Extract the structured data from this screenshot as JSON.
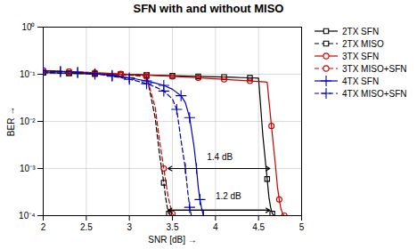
{
  "chart_data": {
    "type": "line",
    "title": "SFN with and without MISO",
    "x_label": "SNR [dB]",
    "y_label": "BER",
    "log": "y",
    "grid": true,
    "legend": "upper right",
    "xlim": [
      2,
      5
    ],
    "xticks": [
      2,
      2.5,
      3,
      3.5,
      4,
      4.5,
      5
    ],
    "ylim": [
      0.0001,
      1
    ],
    "yticks": [
      {
        "value": 0.0001,
        "label": "10⁻⁴"
      },
      {
        "value": 0.001,
        "label": "10⁻³"
      },
      {
        "value": 0.01,
        "label": "10⁻²"
      },
      {
        "value": 0.1,
        "label": "10⁻¹"
      },
      {
        "value": 1,
        "label": "10⁰"
      }
    ],
    "series": [
      {
        "name": "2TX SFN",
        "color": "#000000",
        "line_style": "solid",
        "marker": "square",
        "x": [
          2.0,
          2.1,
          2.2,
          2.3,
          2.4,
          2.5,
          2.6,
          2.7,
          2.8,
          2.9,
          3.0,
          3.1,
          3.2,
          3.3,
          3.4,
          3.5,
          3.6,
          3.7,
          3.8,
          3.9,
          4.0,
          4.1,
          4.2,
          4.3,
          4.4,
          4.5,
          4.55,
          4.6,
          4.62,
          4.64,
          4.66,
          4.68
        ],
        "values": [
          0.108,
          0.107,
          0.106,
          0.105,
          0.104,
          0.103,
          0.102,
          0.101,
          0.1,
          0.099,
          0.098,
          0.097,
          0.096,
          0.095,
          0.094,
          0.093,
          0.092,
          0.091,
          0.09,
          0.089,
          0.088,
          0.087,
          0.086,
          0.085,
          0.084,
          0.083,
          0.005,
          0.0006,
          0.00025,
          0.00015,
          0.00011,
          0.0001
        ]
      },
      {
        "name": "2TX MISO",
        "color": "#000000",
        "line_style": "dashed",
        "marker": "square",
        "x": [
          2.0,
          2.1,
          2.2,
          2.3,
          2.4,
          2.5,
          2.6,
          2.7,
          2.8,
          2.9,
          3.0,
          3.1,
          3.2,
          3.3,
          3.35,
          3.4,
          3.42,
          3.44,
          3.46,
          3.48
        ],
        "values": [
          0.108,
          0.107,
          0.106,
          0.105,
          0.104,
          0.103,
          0.102,
          0.101,
          0.1,
          0.099,
          0.098,
          0.097,
          0.096,
          0.012,
          0.002,
          0.0005,
          0.00025,
          0.00015,
          0.00011,
          0.0001
        ]
      },
      {
        "name": "3TX SFN",
        "color": "#cc0000",
        "line_style": "solid",
        "marker": "circle",
        "x": [
          2.0,
          2.1,
          2.2,
          2.3,
          2.4,
          2.5,
          2.6,
          2.7,
          2.8,
          2.9,
          3.0,
          3.1,
          3.2,
          3.3,
          3.4,
          3.5,
          3.6,
          3.7,
          3.8,
          3.9,
          4.0,
          4.1,
          4.2,
          4.3,
          4.4,
          4.5,
          4.6,
          4.65,
          4.7,
          4.72,
          4.74,
          4.76,
          4.78,
          4.8
        ],
        "values": [
          0.12,
          0.118,
          0.116,
          0.114,
          0.112,
          0.11,
          0.108,
          0.106,
          0.104,
          0.102,
          0.1,
          0.098,
          0.096,
          0.094,
          0.092,
          0.09,
          0.088,
          0.086,
          0.084,
          0.082,
          0.08,
          0.078,
          0.076,
          0.074,
          0.072,
          0.07,
          0.068,
          0.008,
          0.001,
          0.0004,
          0.00022,
          0.00014,
          0.00011,
          0.0001
        ]
      },
      {
        "name": "3TX MISO+SFN",
        "color": "#cc0000",
        "line_style": "dashed",
        "marker": "circle",
        "x": [
          2.0,
          2.1,
          2.2,
          2.3,
          2.4,
          2.5,
          2.6,
          2.7,
          2.8,
          2.9,
          3.0,
          3.1,
          3.2,
          3.3,
          3.35,
          3.4,
          3.45,
          3.48,
          3.5,
          3.52
        ],
        "values": [
          0.12,
          0.118,
          0.116,
          0.114,
          0.112,
          0.11,
          0.107,
          0.104,
          0.101,
          0.098,
          0.095,
          0.092,
          0.089,
          0.02,
          0.004,
          0.001,
          0.00025,
          0.00015,
          0.00011,
          0.0001
        ]
      },
      {
        "name": "4TX SFN",
        "color": "#0000bb",
        "line_style": "solid",
        "marker": "plus",
        "x": [
          2.0,
          2.1,
          2.2,
          2.3,
          2.4,
          2.5,
          2.6,
          2.7,
          2.8,
          2.9,
          3.0,
          3.1,
          3.2,
          3.3,
          3.4,
          3.5,
          3.6,
          3.65,
          3.7,
          3.75,
          3.78,
          3.8,
          3.82,
          3.84,
          3.86
        ],
        "values": [
          0.118,
          0.116,
          0.114,
          0.112,
          0.109,
          0.106,
          0.102,
          0.098,
          0.094,
          0.089,
          0.084,
          0.078,
          0.072,
          0.065,
          0.058,
          0.048,
          0.035,
          0.025,
          0.012,
          0.003,
          0.001,
          0.0004,
          0.00022,
          0.00014,
          0.0001
        ]
      },
      {
        "name": "4TX MISO+SFN",
        "color": "#0000bb",
        "line_style": "dashed",
        "marker": "plus",
        "x": [
          2.0,
          2.1,
          2.2,
          2.3,
          2.4,
          2.5,
          2.6,
          2.7,
          2.8,
          2.9,
          3.0,
          3.1,
          3.2,
          3.3,
          3.4,
          3.5,
          3.55,
          3.6,
          3.65,
          3.68,
          3.7,
          3.72
        ],
        "values": [
          0.118,
          0.116,
          0.114,
          0.112,
          0.109,
          0.106,
          0.102,
          0.097,
          0.091,
          0.085,
          0.078,
          0.071,
          0.063,
          0.054,
          0.044,
          0.03,
          0.018,
          0.004,
          0.001,
          0.0003,
          0.00015,
          0.0001
        ]
      }
    ],
    "annotations": [
      {
        "text": "1.4 dB",
        "x": 4.05,
        "y": 0.0015,
        "arrow": {
          "x1": 3.45,
          "x2": 4.63,
          "y": 0.001
        }
      },
      {
        "text": "1.2 dB",
        "x": 4.15,
        "y": 0.00022,
        "arrow": {
          "x1": 3.45,
          "x2": 4.63,
          "y": 0.00013
        }
      }
    ]
  }
}
